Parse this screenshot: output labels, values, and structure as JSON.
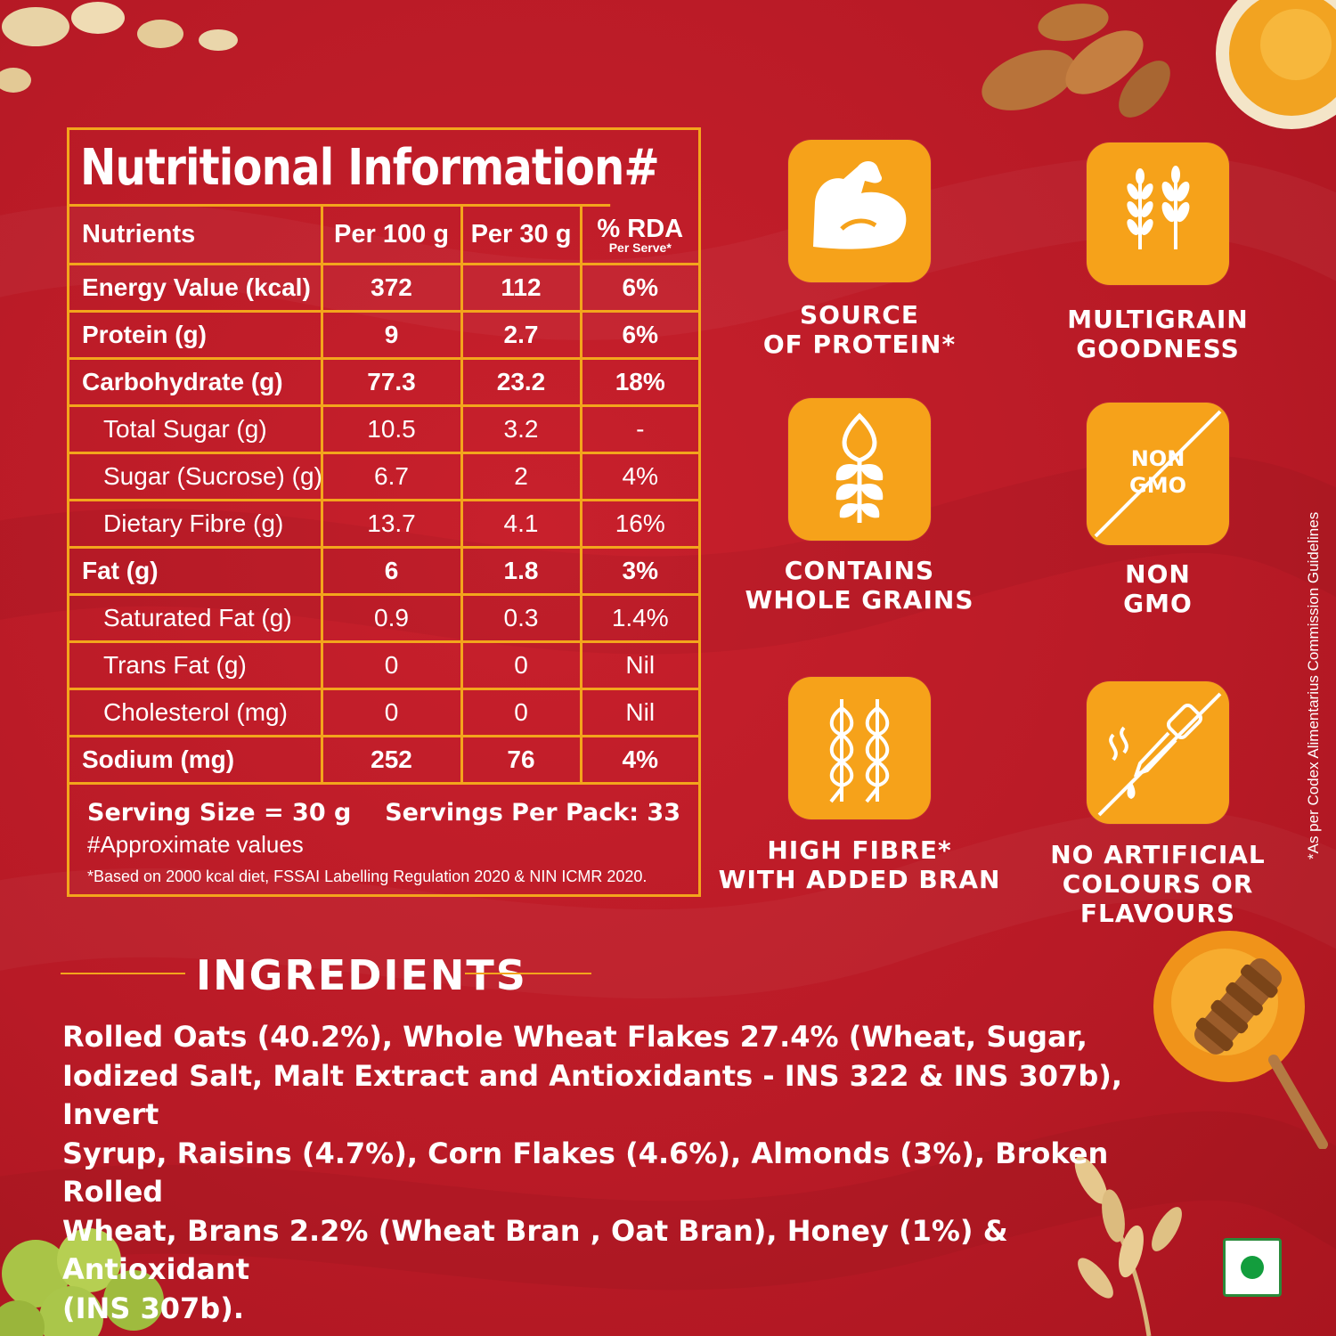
{
  "nutrition": {
    "title": "Nutritional Information#",
    "headers": {
      "nutrients": "Nutrients",
      "per100": "Per 100 g",
      "per30": "Per 30 g",
      "rda": "% RDA",
      "rda_sub": "Per Serve*"
    },
    "rows": [
      {
        "name": "Energy Value (kcal)",
        "per100": "372",
        "per30": "112",
        "rda": "6%"
      },
      {
        "name": "Protein (g)",
        "per100": "9",
        "per30": "2.7",
        "rda": "6%"
      },
      {
        "name": "Carbohydrate (g)",
        "per100": "77.3",
        "per30": "23.2",
        "rda": "18%"
      },
      {
        "name": "Total Sugar (g)",
        "per100": "10.5",
        "per30": "3.2",
        "rda": "-"
      },
      {
        "name": "Sugar (Sucrose) (g)",
        "per100": "6.7",
        "per30": "2",
        "rda": "4%"
      },
      {
        "name": "Dietary Fibre (g)",
        "per100": "13.7",
        "per30": "4.1",
        "rda": "16%"
      },
      {
        "name": "Fat (g)",
        "per100": "6",
        "per30": "1.8",
        "rda": "3%"
      },
      {
        "name": "Saturated Fat (g)",
        "per100": "0.9",
        "per30": "0.3",
        "rda": "1.4%"
      },
      {
        "name": "Trans Fat (g)",
        "per100": "0",
        "per30": "0",
        "rda": "Nil"
      },
      {
        "name": "Cholesterol (mg)",
        "per100": "0",
        "per30": "0",
        "rda": "Nil"
      },
      {
        "name": "Sodium (mg)",
        "per100": "252",
        "per30": "76",
        "rda": "4%"
      }
    ],
    "serving_size": "Serving Size = 30 g",
    "servings_per_pack": "Servings Per Pack: 33",
    "approx": "#Approximate values",
    "basis": "*Based on 2000 kcal diet, FSSAI Labelling Regulation 2020 & NIN ICMR 2020."
  },
  "badges": {
    "protein": {
      "line1": "SOURCE",
      "line2": "OF PROTEIN*",
      "icon": "flexed-arm-icon"
    },
    "multigrain": {
      "line1": "MULTIGRAIN",
      "line2": "GOODNESS",
      "icon": "grain-stalks-icon"
    },
    "wholegrain": {
      "line1": "CONTAINS",
      "line2": "WHOLE GRAINS",
      "icon": "wheat-grain-icon"
    },
    "nongmo": {
      "line1": "NON",
      "line2": "GMO",
      "inner1": "NON",
      "inner2": "GMO",
      "icon": "non-gmo-icon"
    },
    "fibre": {
      "line1": "HIGH FIBRE*",
      "line2": "WITH ADDED BRAN",
      "icon": "wheat-pair-icon"
    },
    "noartificial": {
      "line1": "NO ARTIFICIAL",
      "line2": "COLOURS OR FLAVOURS",
      "icon": "dropper-icon"
    }
  },
  "ingredients": {
    "heading": "INGREDIENTS",
    "lines": [
      "Rolled Oats (40.2%), Whole Wheat Flakes 27.4% (Wheat, Sugar,",
      "Iodized Salt, Malt Extract and Antioxidants - INS 322 & INS 307b), Invert",
      "Syrup, Raisins (4.7%), Corn Flakes (4.6%), Almonds (3%), Broken Rolled",
      "Wheat, Brans 2.2% (Wheat Bran , Oat Bran), Honey (1%) & Antioxidant",
      "(INS 307b)."
    ]
  },
  "side_note": "*As per Codex Alimentarius Commission Guidelines",
  "colors": {
    "background": "#b81a26",
    "accent": "#f3a51c",
    "badge": "#f6a21a",
    "veg": "#139d3d"
  }
}
